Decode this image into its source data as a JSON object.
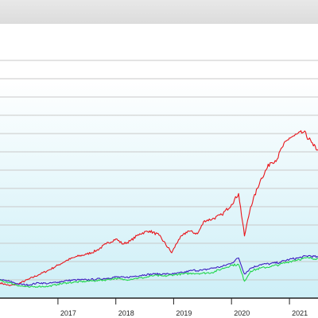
{
  "chart_data": {
    "type": "line",
    "title": "",
    "xlabel": "",
    "ylabel": "",
    "x_axis": {
      "type": "date",
      "range": [
        "2016-01-01",
        "2021-06-30"
      ],
      "tick_labels": [
        "2017",
        "2018",
        "2019",
        "2020",
        "2021"
      ],
      "tick_values": [
        "2017-01-01",
        "2018-01-01",
        "2019-01-01",
        "2020-01-01",
        "2021-01-01"
      ]
    },
    "y_axis": {
      "range": [
        0,
        375
      ],
      "tick_labels_visible": false,
      "gridline_values": [
        25,
        50,
        75,
        100,
        125,
        150,
        175,
        200,
        225,
        250,
        275,
        300,
        325
      ]
    },
    "grid": true,
    "legend": "none",
    "background": {
      "top": "#ffffff",
      "bottom": "#cdeff7"
    },
    "series": [
      {
        "color": "#e8151b",
        "points": [
          [
            "2016-01-01",
            21
          ],
          [
            "2016-03-01",
            17
          ],
          [
            "2016-05-01",
            20
          ],
          [
            "2016-07-01",
            26
          ],
          [
            "2016-09-01",
            32
          ],
          [
            "2016-11-01",
            38
          ],
          [
            "2017-01-01",
            45
          ],
          [
            "2017-03-01",
            52
          ],
          [
            "2017-05-01",
            57
          ],
          [
            "2017-07-01",
            60
          ],
          [
            "2017-09-01",
            65
          ],
          [
            "2017-11-01",
            74
          ],
          [
            "2018-01-01",
            81
          ],
          [
            "2018-02-15",
            74
          ],
          [
            "2018-04-01",
            78
          ],
          [
            "2018-06-01",
            88
          ],
          [
            "2018-08-01",
            92
          ],
          [
            "2018-10-01",
            86
          ],
          [
            "2018-12-20",
            62
          ],
          [
            "2019-02-01",
            80
          ],
          [
            "2019-04-01",
            92
          ],
          [
            "2019-06-01",
            88
          ],
          [
            "2019-07-15",
            106
          ],
          [
            "2019-09-01",
            108
          ],
          [
            "2019-11-01",
            114
          ],
          [
            "2020-01-01",
            128
          ],
          [
            "2020-02-15",
            143
          ],
          [
            "2020-03-23",
            85
          ],
          [
            "2020-05-01",
            125
          ],
          [
            "2020-07-01",
            161
          ],
          [
            "2020-09-01",
            185
          ],
          [
            "2020-10-15",
            190
          ],
          [
            "2020-11-15",
            206
          ],
          [
            "2020-12-31",
            219
          ],
          [
            "2021-02-01",
            222
          ],
          [
            "2021-04-01",
            227
          ],
          [
            "2021-05-20",
            213
          ],
          [
            "2021-06-01",
            208
          ],
          [
            "2021-06-30",
            203
          ]
        ]
      },
      {
        "color": "#3d1fc0",
        "points": [
          [
            "2016-01-01",
            25
          ],
          [
            "2016-03-01",
            23
          ],
          [
            "2016-05-01",
            19
          ],
          [
            "2016-07-01",
            18
          ],
          [
            "2016-09-01",
            21
          ],
          [
            "2016-11-01",
            20
          ],
          [
            "2017-01-01",
            22
          ],
          [
            "2017-03-01",
            24
          ],
          [
            "2017-05-01",
            25
          ],
          [
            "2017-07-01",
            25
          ],
          [
            "2017-09-01",
            26
          ],
          [
            "2017-11-01",
            27
          ],
          [
            "2018-01-01",
            29
          ],
          [
            "2018-03-01",
            28
          ],
          [
            "2018-05-01",
            30
          ],
          [
            "2018-07-01",
            32
          ],
          [
            "2018-09-01",
            33
          ],
          [
            "2018-11-01",
            33
          ],
          [
            "2019-01-01",
            33
          ],
          [
            "2019-03-01",
            35
          ],
          [
            "2019-05-01",
            38
          ],
          [
            "2019-07-01",
            38
          ],
          [
            "2019-09-01",
            41
          ],
          [
            "2019-11-01",
            43
          ],
          [
            "2020-01-01",
            48
          ],
          [
            "2020-02-15",
            55
          ],
          [
            "2020-03-23",
            33
          ],
          [
            "2020-05-01",
            41
          ],
          [
            "2020-07-01",
            46
          ],
          [
            "2020-09-01",
            47
          ],
          [
            "2020-11-01",
            49
          ],
          [
            "2021-01-01",
            53
          ],
          [
            "2021-03-01",
            55
          ],
          [
            "2021-05-01",
            58
          ],
          [
            "2021-06-30",
            56
          ]
        ]
      },
      {
        "color": "#1fd64a",
        "points": [
          [
            "2016-01-01",
            24
          ],
          [
            "2016-03-01",
            21
          ],
          [
            "2016-05-01",
            17
          ],
          [
            "2016-07-01",
            15
          ],
          [
            "2016-09-01",
            16
          ],
          [
            "2016-11-01",
            16
          ],
          [
            "2017-01-01",
            19
          ],
          [
            "2017-03-01",
            21
          ],
          [
            "2017-05-01",
            22
          ],
          [
            "2017-07-01",
            23
          ],
          [
            "2017-09-01",
            24
          ],
          [
            "2017-11-01",
            25
          ],
          [
            "2018-01-01",
            27
          ],
          [
            "2018-03-01",
            25
          ],
          [
            "2018-05-01",
            27
          ],
          [
            "2018-07-01",
            28
          ],
          [
            "2018-09-01",
            31
          ],
          [
            "2018-11-01",
            30
          ],
          [
            "2019-01-01",
            32
          ],
          [
            "2019-03-01",
            33
          ],
          [
            "2019-05-01",
            34
          ],
          [
            "2019-07-01",
            34
          ],
          [
            "2019-09-01",
            35
          ],
          [
            "2019-11-01",
            40
          ],
          [
            "2020-01-01",
            45
          ],
          [
            "2020-02-15",
            46
          ],
          [
            "2020-03-23",
            23
          ],
          [
            "2020-05-01",
            37
          ],
          [
            "2020-07-01",
            41
          ],
          [
            "2020-09-01",
            43
          ],
          [
            "2020-11-01",
            46
          ],
          [
            "2021-01-01",
            50
          ],
          [
            "2021-03-01",
            53
          ],
          [
            "2021-05-01",
            55
          ],
          [
            "2021-06-30",
            54
          ]
        ]
      }
    ]
  }
}
